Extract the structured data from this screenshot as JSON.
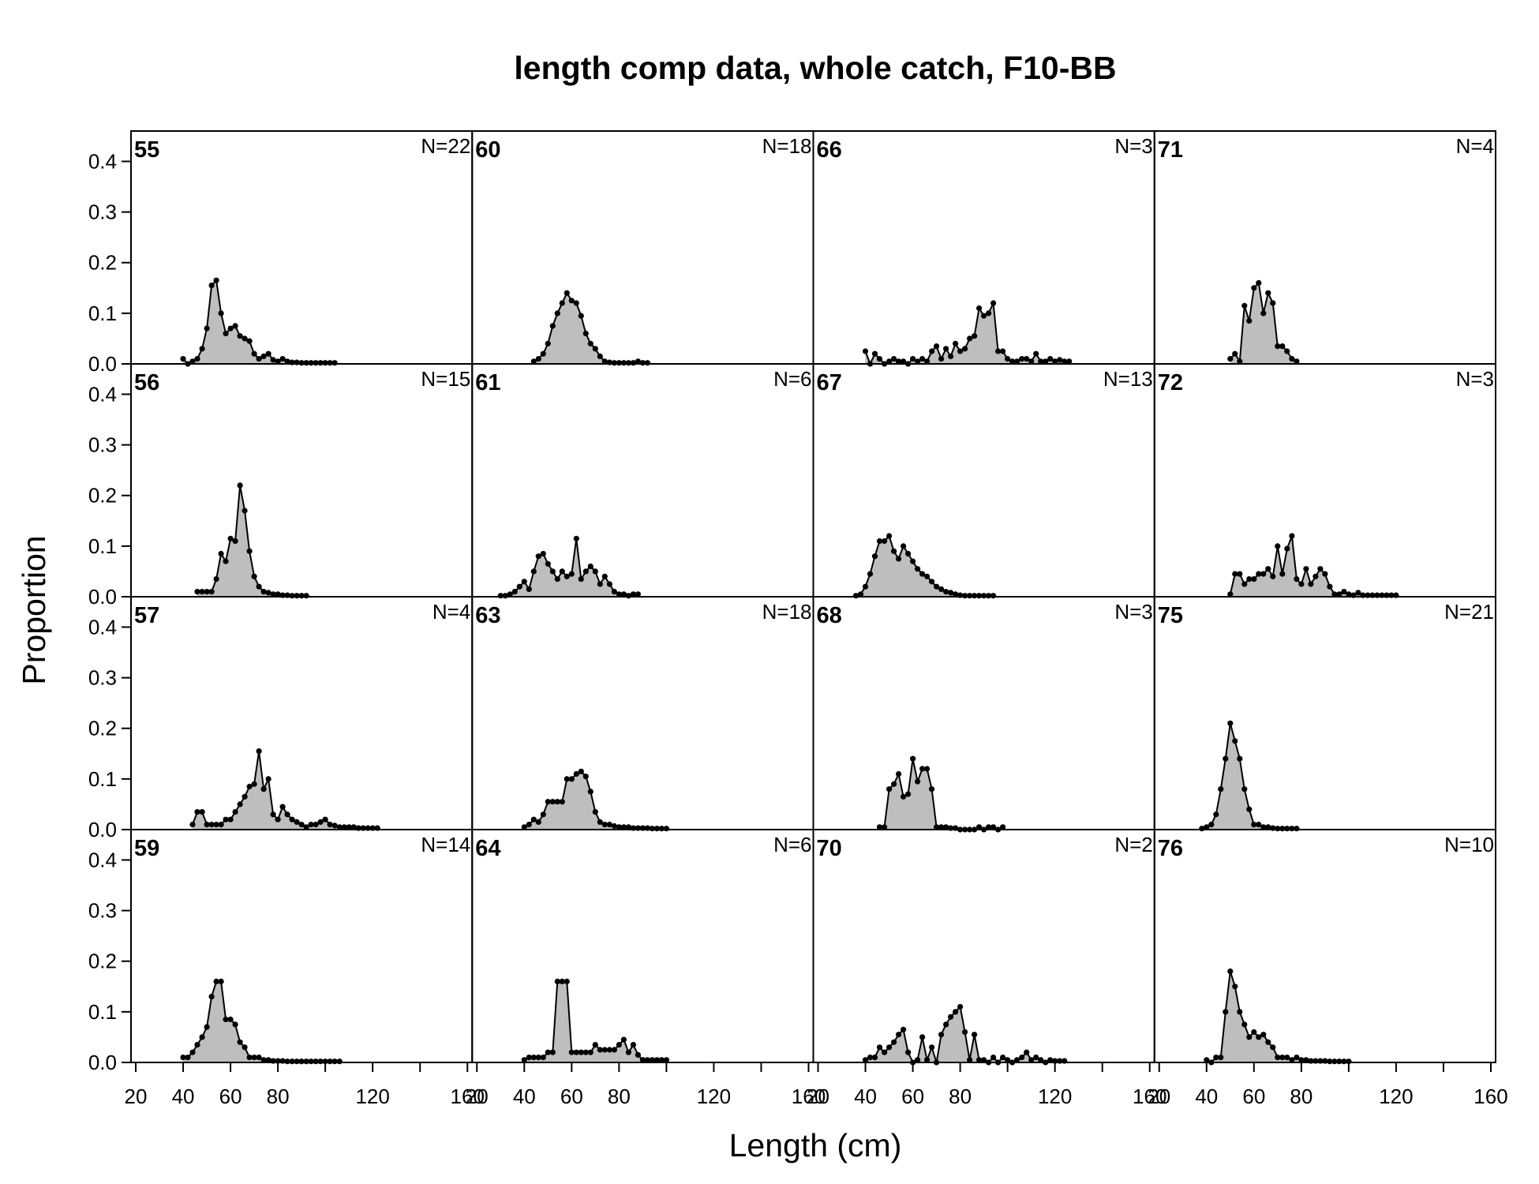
{
  "chart_data": {
    "type": "area",
    "title": "length comp data, whole catch, F10-BB",
    "xlabel": "Length (cm)",
    "ylabel": "Proportion",
    "xlim": [
      18,
      162
    ],
    "ylim": [
      0,
      0.46
    ],
    "x_ticks": [
      20,
      40,
      60,
      80,
      100,
      120,
      140,
      160
    ],
    "x_tick_labels": [
      "20",
      "40",
      "60",
      "80",
      "",
      "120",
      "",
      "160"
    ],
    "y_ticks": [
      0.0,
      0.1,
      0.2,
      0.3,
      0.4
    ],
    "y_tick_labels": [
      "0.0",
      "0.1",
      "0.2",
      "0.3",
      "0.4"
    ],
    "layout": {
      "rows": 4,
      "cols": 4,
      "order": "column-major"
    },
    "fill_color": "#bebebe",
    "line_color": "#000000",
    "panels": [
      {
        "label": "55",
        "n_label": "N=22",
        "x": [
          40,
          42,
          44,
          46,
          48,
          50,
          52,
          54,
          56,
          58,
          60,
          62,
          64,
          66,
          68,
          70,
          72,
          74,
          76,
          78,
          80,
          82,
          84,
          86,
          88,
          90,
          92,
          94,
          96,
          98,
          100,
          102,
          104
        ],
        "y": [
          0.01,
          0.0,
          0.005,
          0.01,
          0.03,
          0.07,
          0.155,
          0.165,
          0.1,
          0.06,
          0.07,
          0.075,
          0.055,
          0.05,
          0.045,
          0.02,
          0.01,
          0.015,
          0.02,
          0.008,
          0.005,
          0.01,
          0.005,
          0.003,
          0.003,
          0.002,
          0.002,
          0.002,
          0.002,
          0.002,
          0.002,
          0.002,
          0.002
        ]
      },
      {
        "label": "56",
        "n_label": "N=15",
        "x": [
          46,
          48,
          50,
          52,
          54,
          56,
          58,
          60,
          62,
          64,
          66,
          68,
          70,
          72,
          74,
          76,
          78,
          80,
          82,
          84,
          86,
          88,
          90,
          92
        ],
        "y": [
          0.01,
          0.01,
          0.01,
          0.01,
          0.035,
          0.085,
          0.07,
          0.115,
          0.11,
          0.22,
          0.17,
          0.09,
          0.04,
          0.02,
          0.01,
          0.008,
          0.005,
          0.005,
          0.003,
          0.003,
          0.002,
          0.002,
          0.002,
          0.002
        ]
      },
      {
        "label": "57",
        "n_label": "N=4",
        "x": [
          44,
          46,
          48,
          50,
          52,
          54,
          56,
          58,
          60,
          62,
          64,
          66,
          68,
          70,
          72,
          74,
          76,
          78,
          80,
          82,
          84,
          86,
          88,
          90,
          92,
          94,
          96,
          98,
          100,
          102,
          104,
          106,
          108,
          110,
          112,
          114,
          116,
          118,
          120,
          122
        ],
        "y": [
          0.01,
          0.035,
          0.035,
          0.01,
          0.01,
          0.01,
          0.01,
          0.02,
          0.02,
          0.035,
          0.05,
          0.065,
          0.085,
          0.09,
          0.155,
          0.08,
          0.1,
          0.03,
          0.02,
          0.045,
          0.03,
          0.02,
          0.015,
          0.01,
          0.005,
          0.01,
          0.01,
          0.015,
          0.02,
          0.01,
          0.008,
          0.005,
          0.005,
          0.005,
          0.005,
          0.003,
          0.003,
          0.003,
          0.003,
          0.003
        ]
      },
      {
        "label": "59",
        "n_label": "N=14",
        "x": [
          40,
          42,
          44,
          46,
          48,
          50,
          52,
          54,
          56,
          58,
          60,
          62,
          64,
          66,
          68,
          70,
          72,
          74,
          76,
          78,
          80,
          82,
          84,
          86,
          88,
          90,
          92,
          94,
          96,
          98,
          100,
          102,
          104,
          106
        ],
        "y": [
          0.01,
          0.01,
          0.02,
          0.035,
          0.05,
          0.07,
          0.13,
          0.16,
          0.16,
          0.085,
          0.085,
          0.075,
          0.04,
          0.03,
          0.01,
          0.01,
          0.01,
          0.005,
          0.005,
          0.003,
          0.003,
          0.003,
          0.002,
          0.002,
          0.002,
          0.002,
          0.002,
          0.002,
          0.002,
          0.002,
          0.002,
          0.002,
          0.002,
          0.002
        ]
      },
      {
        "label": "60",
        "n_label": "N=18",
        "x": [
          44,
          46,
          48,
          50,
          52,
          54,
          56,
          58,
          60,
          62,
          64,
          66,
          68,
          70,
          72,
          74,
          76,
          78,
          80,
          82,
          84,
          86,
          88,
          90,
          92
        ],
        "y": [
          0.005,
          0.01,
          0.02,
          0.04,
          0.075,
          0.1,
          0.12,
          0.14,
          0.125,
          0.12,
          0.095,
          0.06,
          0.04,
          0.03,
          0.015,
          0.005,
          0.003,
          0.002,
          0.002,
          0.002,
          0.002,
          0.002,
          0.005,
          0.002,
          0.002
        ]
      },
      {
        "label": "61",
        "n_label": "N=6",
        "x": [
          30,
          32,
          34,
          36,
          38,
          40,
          42,
          44,
          46,
          48,
          50,
          52,
          54,
          56,
          58,
          60,
          62,
          64,
          66,
          68,
          70,
          72,
          74,
          76,
          78,
          80,
          82,
          84,
          86,
          88
        ],
        "y": [
          0.002,
          0.002,
          0.005,
          0.01,
          0.02,
          0.03,
          0.015,
          0.05,
          0.08,
          0.085,
          0.065,
          0.05,
          0.035,
          0.05,
          0.04,
          0.045,
          0.115,
          0.035,
          0.05,
          0.06,
          0.05,
          0.025,
          0.04,
          0.025,
          0.01,
          0.005,
          0.005,
          0.002,
          0.005,
          0.005
        ]
      },
      {
        "label": "63",
        "n_label": "N=18",
        "x": [
          40,
          42,
          44,
          46,
          48,
          50,
          52,
          54,
          56,
          58,
          60,
          62,
          64,
          66,
          68,
          70,
          72,
          74,
          76,
          78,
          80,
          82,
          84,
          86,
          88,
          90,
          92,
          94,
          96,
          98,
          100
        ],
        "y": [
          0.005,
          0.01,
          0.02,
          0.015,
          0.03,
          0.055,
          0.055,
          0.055,
          0.055,
          0.1,
          0.1,
          0.11,
          0.115,
          0.105,
          0.075,
          0.035,
          0.015,
          0.01,
          0.01,
          0.007,
          0.005,
          0.005,
          0.005,
          0.003,
          0.003,
          0.003,
          0.003,
          0.002,
          0.002,
          0.002,
          0.002
        ]
      },
      {
        "label": "64",
        "n_label": "N=6",
        "x": [
          40,
          42,
          44,
          46,
          48,
          50,
          52,
          54,
          56,
          58,
          60,
          62,
          64,
          66,
          68,
          70,
          72,
          74,
          76,
          78,
          80,
          82,
          84,
          86,
          88,
          90,
          92,
          94,
          96,
          98,
          100
        ],
        "y": [
          0.005,
          0.01,
          0.01,
          0.01,
          0.01,
          0.02,
          0.02,
          0.16,
          0.16,
          0.16,
          0.02,
          0.02,
          0.02,
          0.02,
          0.02,
          0.035,
          0.025,
          0.025,
          0.025,
          0.025,
          0.035,
          0.045,
          0.02,
          0.035,
          0.015,
          0.005,
          0.005,
          0.005,
          0.005,
          0.005,
          0.005
        ]
      },
      {
        "label": "66",
        "n_label": "N=3",
        "x": [
          40,
          42,
          44,
          46,
          48,
          50,
          52,
          54,
          56,
          58,
          60,
          62,
          64,
          66,
          68,
          70,
          72,
          74,
          76,
          78,
          80,
          82,
          84,
          86,
          88,
          90,
          92,
          94,
          96,
          98,
          100,
          102,
          104,
          106,
          108,
          110,
          112,
          114,
          116,
          118,
          120,
          122,
          124,
          126
        ],
        "y": [
          0.025,
          0.0,
          0.02,
          0.01,
          0.0,
          0.005,
          0.01,
          0.005,
          0.005,
          0.0,
          0.01,
          0.005,
          0.01,
          0.005,
          0.025,
          0.035,
          0.01,
          0.03,
          0.015,
          0.04,
          0.025,
          0.03,
          0.05,
          0.055,
          0.11,
          0.095,
          0.1,
          0.12,
          0.025,
          0.025,
          0.01,
          0.005,
          0.005,
          0.01,
          0.01,
          0.005,
          0.02,
          0.005,
          0.005,
          0.01,
          0.005,
          0.008,
          0.005,
          0.005
        ]
      },
      {
        "label": "67",
        "n_label": "N=13",
        "x": [
          36,
          38,
          40,
          42,
          44,
          46,
          48,
          50,
          52,
          54,
          56,
          58,
          60,
          62,
          64,
          66,
          68,
          70,
          72,
          74,
          76,
          78,
          80,
          82,
          84,
          86,
          88,
          90,
          92,
          94
        ],
        "y": [
          0.002,
          0.005,
          0.02,
          0.045,
          0.08,
          0.11,
          0.11,
          0.12,
          0.09,
          0.075,
          0.1,
          0.085,
          0.07,
          0.055,
          0.045,
          0.04,
          0.03,
          0.02,
          0.015,
          0.01,
          0.008,
          0.005,
          0.003,
          0.002,
          0.002,
          0.002,
          0.002,
          0.002,
          0.002,
          0.002
        ]
      },
      {
        "label": "68",
        "n_label": "N=3",
        "x": [
          46,
          48,
          50,
          52,
          54,
          56,
          58,
          60,
          62,
          64,
          66,
          68,
          70,
          72,
          74,
          76,
          78,
          80,
          82,
          84,
          86,
          88,
          90,
          92,
          94,
          96,
          98
        ],
        "y": [
          0.005,
          0.005,
          0.08,
          0.09,
          0.11,
          0.065,
          0.07,
          0.14,
          0.095,
          0.12,
          0.12,
          0.08,
          0.005,
          0.005,
          0.005,
          0.003,
          0.003,
          0.0,
          0.0,
          0.0,
          0.0,
          0.005,
          0.0,
          0.005,
          0.005,
          0.0,
          0.005
        ]
      },
      {
        "label": "70",
        "n_label": "N=2",
        "x": [
          40,
          42,
          44,
          46,
          48,
          50,
          52,
          54,
          56,
          58,
          60,
          62,
          64,
          66,
          68,
          70,
          72,
          74,
          76,
          78,
          80,
          82,
          84,
          86,
          88,
          90,
          92,
          94,
          96,
          98,
          100,
          102,
          104,
          106,
          108,
          110,
          112,
          114,
          116,
          118,
          120,
          122,
          124
        ],
        "y": [
          0.005,
          0.01,
          0.01,
          0.03,
          0.02,
          0.03,
          0.04,
          0.055,
          0.065,
          0.02,
          0.0,
          0.005,
          0.05,
          0.005,
          0.03,
          0.0,
          0.055,
          0.075,
          0.09,
          0.1,
          0.11,
          0.06,
          0.005,
          0.055,
          0.005,
          0.005,
          0.0,
          0.01,
          0.0,
          0.01,
          0.005,
          0.0,
          0.005,
          0.01,
          0.02,
          0.005,
          0.01,
          0.005,
          0.0,
          0.005,
          0.003,
          0.003,
          0.003
        ]
      },
      {
        "label": "71",
        "n_label": "N=4",
        "x": [
          50,
          52,
          54,
          56,
          58,
          60,
          62,
          64,
          66,
          68,
          70,
          72,
          74,
          76,
          78
        ],
        "y": [
          0.01,
          0.02,
          0.005,
          0.115,
          0.085,
          0.15,
          0.16,
          0.1,
          0.14,
          0.12,
          0.035,
          0.035,
          0.025,
          0.01,
          0.005
        ]
      },
      {
        "label": "72",
        "n_label": "N=3",
        "x": [
          50,
          52,
          54,
          56,
          58,
          60,
          62,
          64,
          66,
          68,
          70,
          72,
          74,
          76,
          78,
          80,
          82,
          84,
          86,
          88,
          90,
          92,
          94,
          96,
          98,
          100,
          102,
          104,
          106,
          108,
          110,
          112,
          114,
          116,
          118,
          120
        ],
        "y": [
          0.005,
          0.045,
          0.045,
          0.025,
          0.035,
          0.035,
          0.045,
          0.045,
          0.055,
          0.04,
          0.1,
          0.045,
          0.095,
          0.12,
          0.035,
          0.025,
          0.055,
          0.025,
          0.04,
          0.055,
          0.045,
          0.02,
          0.005,
          0.005,
          0.01,
          0.005,
          0.003,
          0.008,
          0.003,
          0.003,
          0.003,
          0.003,
          0.003,
          0.003,
          0.003,
          0.003
        ]
      },
      {
        "label": "75",
        "n_label": "N=21",
        "x": [
          38,
          40,
          42,
          44,
          46,
          48,
          50,
          52,
          54,
          56,
          58,
          60,
          62,
          64,
          66,
          68,
          70,
          72,
          74,
          76,
          78
        ],
        "y": [
          0.002,
          0.005,
          0.01,
          0.03,
          0.08,
          0.14,
          0.21,
          0.175,
          0.14,
          0.08,
          0.04,
          0.01,
          0.01,
          0.005,
          0.005,
          0.003,
          0.002,
          0.002,
          0.002,
          0.002,
          0.002
        ]
      },
      {
        "label": "76",
        "n_label": "N=10",
        "x": [
          40,
          42,
          44,
          46,
          48,
          50,
          52,
          54,
          56,
          58,
          60,
          62,
          64,
          66,
          68,
          70,
          72,
          74,
          76,
          78,
          80,
          82,
          84,
          86,
          88,
          90,
          92,
          94,
          96,
          98,
          100
        ],
        "y": [
          0.005,
          0.0,
          0.01,
          0.01,
          0.1,
          0.18,
          0.15,
          0.1,
          0.075,
          0.05,
          0.06,
          0.05,
          0.055,
          0.04,
          0.03,
          0.01,
          0.01,
          0.01,
          0.005,
          0.01,
          0.005,
          0.005,
          0.003,
          0.003,
          0.003,
          0.003,
          0.002,
          0.002,
          0.002,
          0.002,
          0.002
        ]
      }
    ]
  }
}
